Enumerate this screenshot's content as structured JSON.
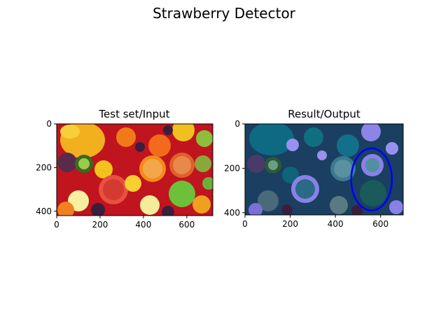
{
  "figure": {
    "suptitle": "Strawberry Detector"
  },
  "chart_data": [
    {
      "type": "image",
      "title": "Test set/Input",
      "xlim": [
        0,
        720
      ],
      "ylim": [
        420,
        0
      ],
      "xticks": [
        0,
        200,
        400,
        600
      ],
      "yticks": [
        0,
        200,
        400
      ],
      "image_description_colors": [
        "#f0a020",
        "#d2141c",
        "#f26a1b",
        "#e8c830",
        "#7cc242",
        "#3a1f3d"
      ]
    },
    {
      "type": "image",
      "title": "Result/Output",
      "xlim": [
        0,
        700
      ],
      "ylim": [
        410,
        0
      ],
      "xticks": [
        0,
        200,
        400,
        600
      ],
      "yticks": [
        0,
        200,
        400
      ],
      "annotation": {
        "shape": "ellipse",
        "color": "#0000ff",
        "center": [
          560,
          250
        ],
        "rx": 90,
        "ry": 140
      },
      "image_description_colors": [
        "#1a4a6a",
        "#0e6b7a",
        "#8a80e8",
        "#2a3a55"
      ]
    }
  ]
}
